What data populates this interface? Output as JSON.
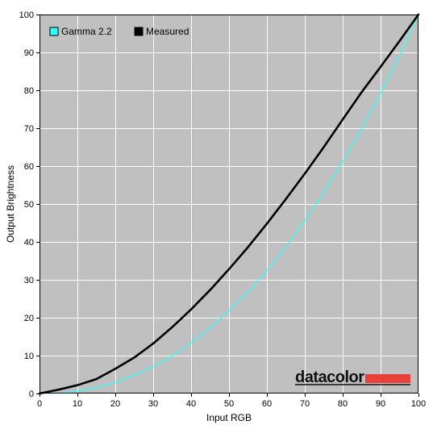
{
  "chart_data": {
    "type": "line",
    "title": "",
    "xlabel": "Input RGB",
    "ylabel": "Output Brightness",
    "xlim": [
      0,
      100
    ],
    "ylim": [
      0,
      100
    ],
    "xticks": [
      0,
      10,
      20,
      30,
      40,
      50,
      60,
      70,
      80,
      90,
      100
    ],
    "yticks": [
      0,
      10,
      20,
      30,
      40,
      50,
      60,
      70,
      80,
      90,
      100
    ],
    "grid": true,
    "legend_position": "top-left",
    "background_color": "#c0c0c0",
    "series": [
      {
        "name": "Gamma 2.2",
        "color": "#33ffff",
        "x": [
          0,
          5,
          10,
          15,
          20,
          25,
          30,
          35,
          40,
          45,
          50,
          55,
          60,
          65,
          70,
          75,
          80,
          85,
          90,
          95,
          100
        ],
        "y": [
          0,
          0.1,
          0.6,
          1.5,
          2.9,
          4.8,
          7.1,
          9.9,
          13.3,
          17.3,
          21.8,
          26.8,
          32.5,
          38.7,
          45.6,
          53.1,
          61.2,
          69.9,
          79.3,
          89.3,
          100
        ]
      },
      {
        "name": "Measured",
        "color": "#000000",
        "x": [
          0,
          5,
          10,
          15,
          20,
          25,
          30,
          35,
          40,
          45,
          50,
          55,
          60,
          65,
          70,
          75,
          80,
          85,
          90,
          95,
          100
        ],
        "y": [
          0,
          1.0,
          2.2,
          3.8,
          6.5,
          9.5,
          13.2,
          17.5,
          22.2,
          27.3,
          32.8,
          38.6,
          44.8,
          51.3,
          58.0,
          65.0,
          72.3,
          79.5,
          86.2,
          93.0,
          100
        ]
      }
    ]
  },
  "branding": {
    "logo_text": "datacolor",
    "logo_bar_color": "#e8403a"
  }
}
